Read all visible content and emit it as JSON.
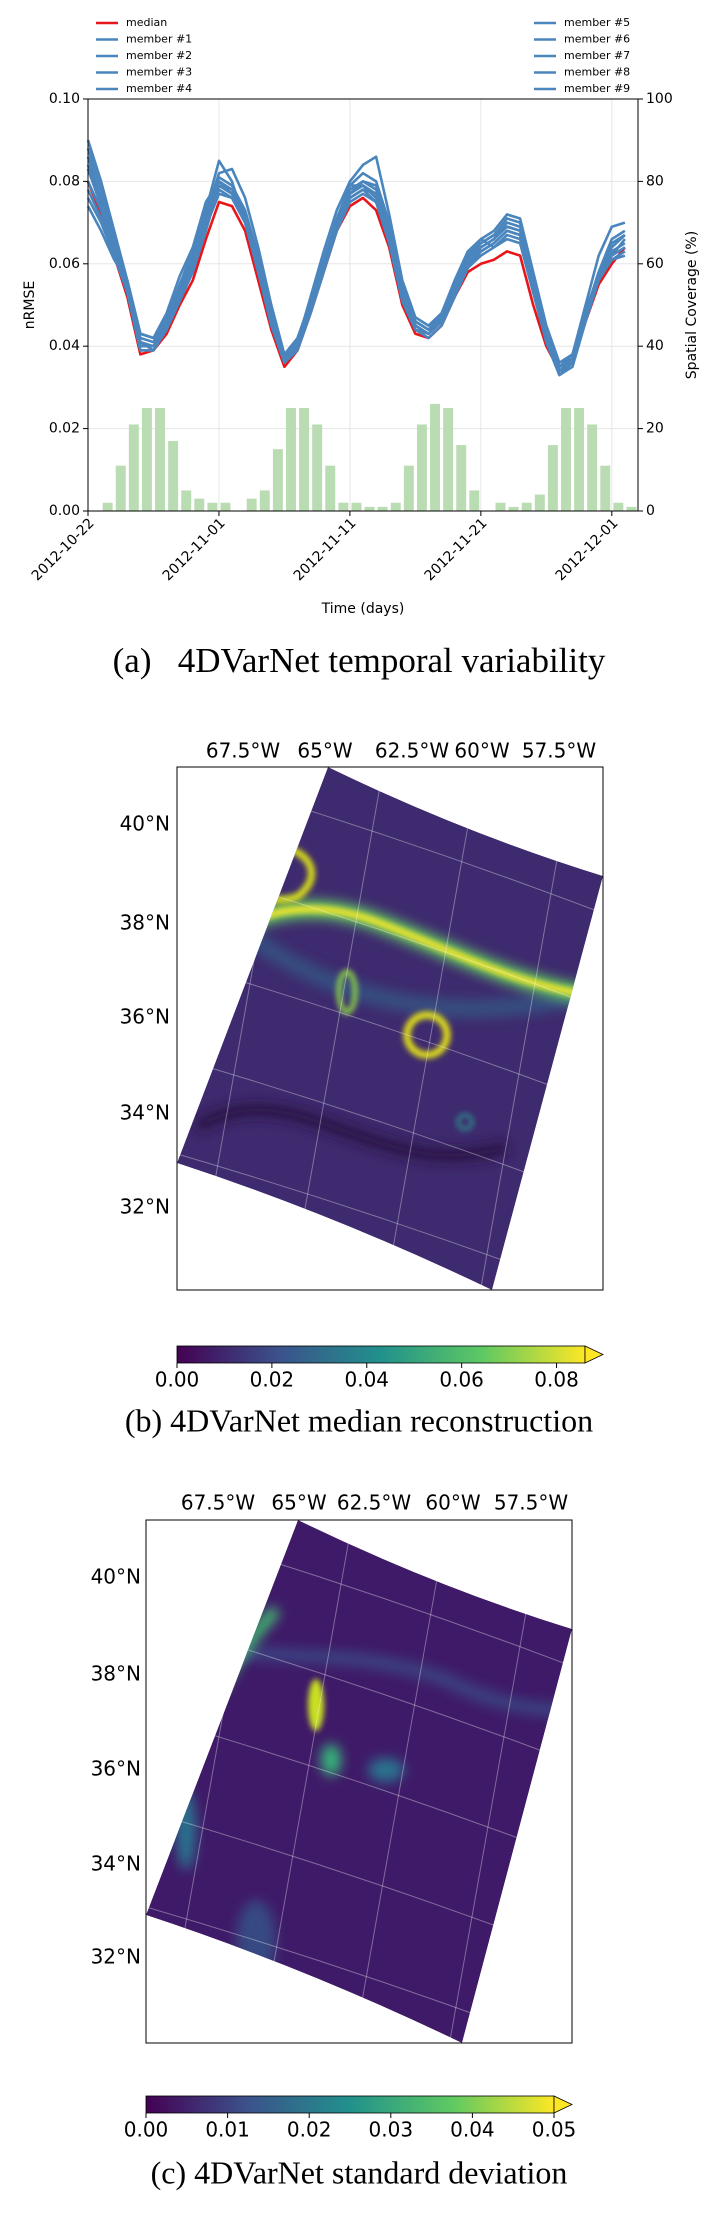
{
  "chart_data": [
    {
      "type": "line",
      "caption": "(a)   4DVarNet temporal variability",
      "xlabel": "Time (days)",
      "ylabel": "nRMSE",
      "y2label": "Spatial Coverage (%)",
      "x": [
        "2012-10-22",
        "2012-10-23",
        "2012-10-24",
        "2012-10-25",
        "2012-10-26",
        "2012-10-27",
        "2012-10-28",
        "2012-10-29",
        "2012-10-30",
        "2012-10-31",
        "2012-11-01",
        "2012-11-02",
        "2012-11-03",
        "2012-11-04",
        "2012-11-05",
        "2012-11-06",
        "2012-11-07",
        "2012-11-08",
        "2012-11-09",
        "2012-11-10",
        "2012-11-11",
        "2012-11-12",
        "2012-11-13",
        "2012-11-14",
        "2012-11-15",
        "2012-11-16",
        "2012-11-17",
        "2012-11-18",
        "2012-11-19",
        "2012-11-20",
        "2012-11-21",
        "2012-11-22",
        "2012-11-23",
        "2012-11-24",
        "2012-11-25",
        "2012-11-26",
        "2012-11-27",
        "2012-11-28",
        "2012-11-29",
        "2012-11-30",
        "2012-12-01",
        "2012-12-02"
      ],
      "xlim": [
        "2012-10-22",
        "2012-12-03"
      ],
      "xticks": [
        "2012-10-22",
        "2012-11-01",
        "2012-11-11",
        "2012-11-21",
        "2012-12-01"
      ],
      "ylim": [
        0,
        0.1
      ],
      "yticks": [
        {
          "value": 0,
          "label": "0.00"
        },
        0.02,
        0.04,
        0.06,
        0.08,
        {
          "value": 0.1,
          "label": "0.10"
        }
      ],
      "y2lim": [
        0,
        100
      ],
      "y2ticks": [
        0,
        20,
        40,
        60,
        80,
        100
      ],
      "grid": true,
      "series": [
        {
          "name": "median",
          "color": "#e8161b",
          "values": [
            0.08,
            0.072,
            0.062,
            0.052,
            0.038,
            0.039,
            0.043,
            0.05,
            0.056,
            0.066,
            0.075,
            0.074,
            0.068,
            0.056,
            0.044,
            0.035,
            0.039,
            0.048,
            0.058,
            0.068,
            0.074,
            0.076,
            0.073,
            0.064,
            0.05,
            0.043,
            0.042,
            0.045,
            0.052,
            0.058,
            0.06,
            0.061,
            0.063,
            0.062,
            0.05,
            0.04,
            0.034,
            0.036,
            0.046,
            0.055,
            0.06,
            0.064
          ]
        },
        {
          "name": "member #1",
          "color": "#4a85bd",
          "values": [
            0.09,
            0.08,
            0.068,
            0.056,
            0.043,
            0.042,
            0.046,
            0.054,
            0.062,
            0.072,
            0.082,
            0.083,
            0.076,
            0.064,
            0.05,
            0.038,
            0.041,
            0.052,
            0.063,
            0.073,
            0.08,
            0.084,
            0.086,
            0.072,
            0.056,
            0.047,
            0.045,
            0.048,
            0.056,
            0.063,
            0.066,
            0.068,
            0.072,
            0.071,
            0.058,
            0.045,
            0.036,
            0.038,
            0.05,
            0.062,
            0.069,
            0.07
          ]
        },
        {
          "name": "member #2",
          "color": "#4a85bd",
          "values": [
            0.086,
            0.076,
            0.065,
            0.054,
            0.04,
            0.04,
            0.045,
            0.052,
            0.06,
            0.07,
            0.08,
            0.078,
            0.072,
            0.06,
            0.047,
            0.037,
            0.04,
            0.05,
            0.06,
            0.07,
            0.078,
            0.08,
            0.078,
            0.068,
            0.053,
            0.045,
            0.043,
            0.047,
            0.054,
            0.06,
            0.064,
            0.066,
            0.07,
            0.069,
            0.055,
            0.042,
            0.034,
            0.037,
            0.048,
            0.058,
            0.066,
            0.068
          ]
        },
        {
          "name": "member #3",
          "color": "#4a85bd",
          "values": [
            0.083,
            0.074,
            0.064,
            0.055,
            0.042,
            0.041,
            0.047,
            0.055,
            0.063,
            0.073,
            0.085,
            0.08,
            0.07,
            0.058,
            0.046,
            0.038,
            0.042,
            0.051,
            0.061,
            0.071,
            0.079,
            0.079,
            0.076,
            0.066,
            0.052,
            0.046,
            0.044,
            0.048,
            0.055,
            0.062,
            0.066,
            0.064,
            0.066,
            0.065,
            0.053,
            0.043,
            0.035,
            0.038,
            0.049,
            0.057,
            0.062,
            0.066
          ]
        },
        {
          "name": "member #4",
          "color": "#4a85bd",
          "values": [
            0.076,
            0.07,
            0.062,
            0.054,
            0.041,
            0.04,
            0.046,
            0.053,
            0.06,
            0.069,
            0.077,
            0.076,
            0.07,
            0.059,
            0.046,
            0.036,
            0.04,
            0.049,
            0.059,
            0.069,
            0.076,
            0.078,
            0.075,
            0.066,
            0.051,
            0.044,
            0.043,
            0.046,
            0.053,
            0.059,
            0.063,
            0.065,
            0.068,
            0.067,
            0.054,
            0.042,
            0.034,
            0.036,
            0.047,
            0.056,
            0.061,
            0.062
          ]
        },
        {
          "name": "member #5",
          "color": "#4a85bd",
          "values": [
            0.074,
            0.068,
            0.061,
            0.056,
            0.043,
            0.042,
            0.048,
            0.057,
            0.064,
            0.075,
            0.08,
            0.077,
            0.071,
            0.06,
            0.047,
            0.038,
            0.041,
            0.05,
            0.06,
            0.07,
            0.077,
            0.079,
            0.077,
            0.067,
            0.052,
            0.046,
            0.044,
            0.047,
            0.054,
            0.061,
            0.065,
            0.067,
            0.069,
            0.068,
            0.055,
            0.043,
            0.035,
            0.037,
            0.048,
            0.057,
            0.061,
            0.063
          ]
        },
        {
          "name": "member #6",
          "color": "#4a85bd",
          "values": [
            0.088,
            0.078,
            0.067,
            0.055,
            0.041,
            0.039,
            0.044,
            0.051,
            0.058,
            0.068,
            0.079,
            0.077,
            0.072,
            0.061,
            0.048,
            0.037,
            0.04,
            0.049,
            0.059,
            0.069,
            0.077,
            0.08,
            0.079,
            0.069,
            0.054,
            0.045,
            0.043,
            0.046,
            0.053,
            0.06,
            0.063,
            0.065,
            0.068,
            0.067,
            0.054,
            0.041,
            0.033,
            0.036,
            0.047,
            0.057,
            0.064,
            0.067
          ]
        },
        {
          "name": "member #7",
          "color": "#4a85bd",
          "values": [
            0.084,
            0.075,
            0.064,
            0.053,
            0.039,
            0.039,
            0.044,
            0.051,
            0.058,
            0.069,
            0.078,
            0.076,
            0.07,
            0.058,
            0.045,
            0.036,
            0.039,
            0.048,
            0.058,
            0.068,
            0.075,
            0.077,
            0.075,
            0.065,
            0.051,
            0.044,
            0.042,
            0.045,
            0.052,
            0.059,
            0.062,
            0.064,
            0.067,
            0.066,
            0.053,
            0.041,
            0.033,
            0.035,
            0.046,
            0.056,
            0.063,
            0.065
          ]
        },
        {
          "name": "member #8",
          "color": "#4a85bd",
          "values": [
            0.08,
            0.073,
            0.063,
            0.054,
            0.04,
            0.04,
            0.045,
            0.053,
            0.061,
            0.071,
            0.081,
            0.079,
            0.073,
            0.062,
            0.048,
            0.037,
            0.041,
            0.05,
            0.06,
            0.07,
            0.079,
            0.082,
            0.08,
            0.07,
            0.055,
            0.046,
            0.044,
            0.047,
            0.055,
            0.062,
            0.065,
            0.067,
            0.071,
            0.07,
            0.056,
            0.043,
            0.035,
            0.037,
            0.048,
            0.058,
            0.065,
            0.067
          ]
        },
        {
          "name": "member #9",
          "color": "#4a85bd",
          "values": [
            0.078,
            0.071,
            0.062,
            0.053,
            0.039,
            0.039,
            0.044,
            0.052,
            0.059,
            0.07,
            0.079,
            0.077,
            0.071,
            0.06,
            0.047,
            0.036,
            0.04,
            0.049,
            0.059,
            0.069,
            0.076,
            0.078,
            0.077,
            0.067,
            0.053,
            0.045,
            0.043,
            0.046,
            0.054,
            0.06,
            0.064,
            0.066,
            0.069,
            0.068,
            0.055,
            0.042,
            0.034,
            0.036,
            0.047,
            0.057,
            0.062,
            0.064
          ]
        },
        {
          "type": "bar",
          "axis": "y2",
          "color": "#b9dcb3",
          "values": [
            0,
            2,
            11,
            21,
            25,
            25,
            17,
            5,
            3,
            2,
            2,
            0,
            3,
            5,
            15,
            25,
            25,
            21,
            11,
            2,
            2,
            1,
            1,
            2,
            11,
            21,
            26,
            25,
            16,
            5,
            0,
            2,
            1,
            2,
            4,
            16,
            25,
            25,
            21,
            11,
            2,
            1
          ]
        }
      ]
    },
    {
      "type": "map",
      "caption": "(b) 4DVarNet median reconstruction",
      "lon_labels": [
        "67.5°W",
        "65°W",
        "62.5°W",
        "60°W",
        "57.5°W"
      ],
      "lat_labels": [
        "40°N",
        "38°N",
        "36°N",
        "34°N",
        "32°N"
      ],
      "clim": [
        0,
        0.086
      ],
      "cticks": [
        {
          "value": 0,
          "label": "0.00"
        },
        0.02,
        0.04,
        0.06,
        0.08
      ]
    },
    {
      "type": "map",
      "caption": "(c) 4DVarNet standard deviation",
      "lon_labels": [
        "67.5°W",
        "65°W",
        "62.5°W",
        "60°W",
        "57.5°W"
      ],
      "lat_labels": [
        "40°N",
        "38°N",
        "36°N",
        "34°N",
        "32°N"
      ],
      "clim": [
        0,
        0.05
      ],
      "cticks": [
        {
          "value": 0,
          "label": "0.00"
        },
        0.01,
        0.02,
        0.03,
        0.04,
        0.05
      ]
    }
  ]
}
